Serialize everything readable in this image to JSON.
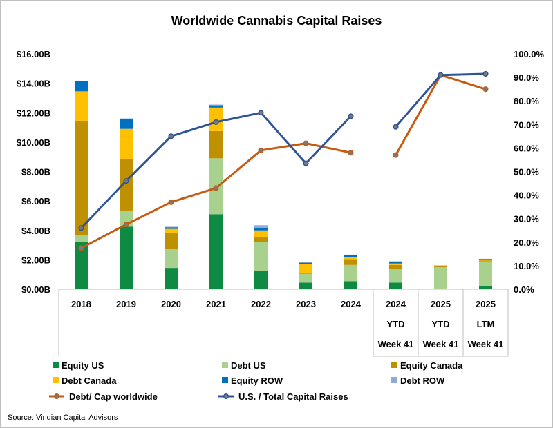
{
  "chart_data": {
    "type": "bar",
    "title": "Worldwide Cannabis Capital Raises",
    "categories": [
      [
        "2018"
      ],
      [
        "2019"
      ],
      [
        "2020"
      ],
      [
        "2021"
      ],
      [
        "2022"
      ],
      [
        "2023"
      ],
      [
        "2024"
      ],
      [
        "2024",
        "YTD",
        "Week 41"
      ],
      [
        "2025",
        "YTD",
        "Week 41"
      ],
      [
        "2025",
        "LTM",
        "Week 41"
      ]
    ],
    "y_left": {
      "min": 0,
      "max": 16,
      "step": 2,
      "tick_labels": [
        "$0.00B",
        "$2.00B",
        "$4.00B",
        "$6.00B",
        "$8.00B",
        "$10.00B",
        "$12.00B",
        "$14.00B",
        "$16.00B"
      ]
    },
    "y_right": {
      "min": 0,
      "max": 100,
      "step": 10,
      "tick_labels": [
        "0.0%",
        "10.0%",
        "20.0%",
        "30.0%",
        "40.0%",
        "50.0%",
        "60.0%",
        "70.0%",
        "80.0%",
        "90.0%",
        "100.0%"
      ]
    },
    "bar_series": [
      {
        "name": "Equity US",
        "color": "#0e8a43",
        "values": [
          3.2,
          4.25,
          1.45,
          5.1,
          1.25,
          0.45,
          0.55,
          0.45,
          0.05,
          0.2
        ]
      },
      {
        "name": "Debt US",
        "color": "#a9d18e",
        "values": [
          0.45,
          1.1,
          1.3,
          3.8,
          1.95,
          0.6,
          1.1,
          0.9,
          1.45,
          1.7
        ]
      },
      {
        "name": "Equity Canada",
        "color": "#bf9000",
        "values": [
          7.8,
          3.5,
          1.1,
          1.85,
          0.35,
          0.05,
          0.4,
          0.3,
          0.05,
          0.05
        ]
      },
      {
        "name": "Debt Canada",
        "color": "#ffc000",
        "values": [
          2.0,
          2.05,
          0.25,
          1.6,
          0.45,
          0.6,
          0.15,
          0.1,
          0.02,
          0.05
        ]
      },
      {
        "name": "Equity ROW",
        "color": "#0070c0",
        "values": [
          0.7,
          0.7,
          0.1,
          0.15,
          0.15,
          0.1,
          0.1,
          0.1,
          0.02,
          0.05
        ]
      },
      {
        "name": "Debt ROW",
        "color": "#8faadc",
        "values": [
          0.0,
          0.0,
          0.05,
          0.05,
          0.2,
          0.05,
          0.05,
          0.05,
          0.03,
          0.02
        ]
      }
    ],
    "line_series": [
      {
        "name": "Debt/ Cap worldwide",
        "color": "#c55a11",
        "segments": [
          [
            0,
            6,
            [
              17.5,
              27.5,
              37,
              43,
              59,
              62,
              58
            ]
          ],
          [
            7,
            9,
            [
              57,
              91,
              85
            ]
          ]
        ]
      },
      {
        "name": "U.S. / Total Capital Raises",
        "color": "#2f5597",
        "segments": [
          [
            0,
            6,
            [
              26,
              46,
              65,
              71,
              75,
              53.5,
              73.5
            ]
          ],
          [
            7,
            9,
            [
              69,
              91,
              91.5
            ]
          ]
        ]
      }
    ],
    "legend_position": "bottom",
    "source": "Source: Viridian Capital Advisors"
  }
}
